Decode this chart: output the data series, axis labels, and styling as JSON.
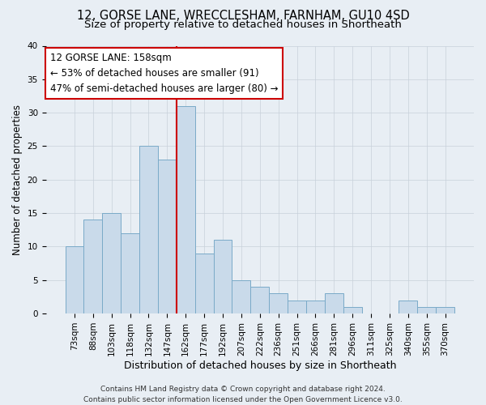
{
  "title1": "12, GORSE LANE, WRECCLESHAM, FARNHAM, GU10 4SD",
  "title2": "Size of property relative to detached houses in Shortheath",
  "xlabel": "Distribution of detached houses by size in Shortheath",
  "ylabel": "Number of detached properties",
  "categories": [
    "73sqm",
    "88sqm",
    "103sqm",
    "118sqm",
    "132sqm",
    "147sqm",
    "162sqm",
    "177sqm",
    "192sqm",
    "207sqm",
    "222sqm",
    "236sqm",
    "251sqm",
    "266sqm",
    "281sqm",
    "296sqm",
    "311sqm",
    "325sqm",
    "340sqm",
    "355sqm",
    "370sqm"
  ],
  "values": [
    10,
    14,
    15,
    12,
    25,
    23,
    31,
    9,
    11,
    5,
    4,
    3,
    2,
    2,
    3,
    1,
    0,
    0,
    2,
    1,
    1
  ],
  "bar_color": "#c9daea",
  "bar_edge_color": "#7aaac8",
  "vline_color": "#cc0000",
  "vline_x_index": 6,
  "annotation_line1": "12 GORSE LANE: 158sqm",
  "annotation_line2": "← 53% of detached houses are smaller (91)",
  "annotation_line3": "47% of semi-detached houses are larger (80) →",
  "annotation_box_facecolor": "#ffffff",
  "annotation_box_edgecolor": "#cc0000",
  "ylim": [
    0,
    40
  ],
  "yticks": [
    0,
    5,
    10,
    15,
    20,
    25,
    30,
    35,
    40
  ],
  "footer1": "Contains HM Land Registry data © Crown copyright and database right 2024.",
  "footer2": "Contains public sector information licensed under the Open Government Licence v3.0.",
  "bg_color": "#e8eef4",
  "title1_fontsize": 10.5,
  "title2_fontsize": 9.5,
  "xlabel_fontsize": 9,
  "ylabel_fontsize": 8.5,
  "tick_fontsize": 7.5,
  "annotation_fontsize": 8.5,
  "footer_fontsize": 6.5
}
